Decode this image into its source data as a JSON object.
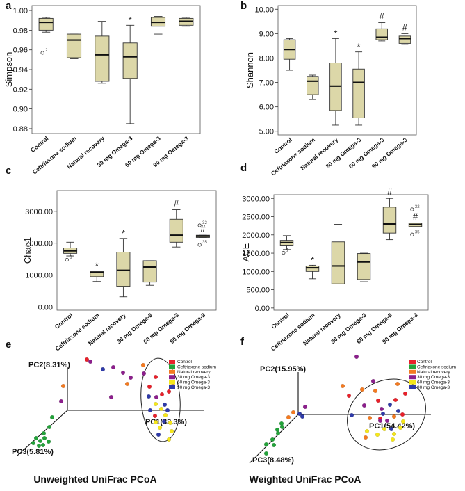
{
  "chart_data": [
    {
      "panel": "a",
      "type": "box",
      "ylabel": "Simpson",
      "ylim": [
        0.875,
        1.005
      ],
      "yticks": [
        0.88,
        0.9,
        0.92,
        0.94,
        0.96,
        0.98,
        1.0
      ],
      "ytick_labels": [
        "0.88",
        "0.90",
        "0.92",
        "0.94",
        "0.96",
        "0.98",
        "1.00"
      ],
      "categories": [
        "Control",
        "Ceftriaxone sodium",
        "Natural recovery",
        "30 mg Omega-3",
        "60 mg Omega-3",
        "90 mg Omega-3"
      ],
      "boxes": [
        {
          "min": 0.978,
          "q1": 0.98,
          "median": 0.988,
          "q3": 0.992,
          "max": 0.993
        },
        {
          "min": 0.951,
          "q1": 0.952,
          "median": 0.97,
          "q3": 0.976,
          "max": 0.977
        },
        {
          "min": 0.926,
          "q1": 0.928,
          "median": 0.955,
          "q3": 0.974,
          "max": 0.989
        },
        {
          "min": 0.885,
          "q1": 0.931,
          "median": 0.953,
          "q3": 0.967,
          "max": 0.985
        },
        {
          "min": 0.976,
          "q1": 0.984,
          "median": 0.988,
          "q3": 0.993,
          "max": 0.994
        },
        {
          "min": 0.984,
          "q1": 0.985,
          "median": 0.989,
          "q3": 0.992,
          "max": 0.993
        }
      ],
      "outliers": [
        {
          "category": "Control",
          "value": 0.957,
          "label": "2"
        }
      ],
      "annotations": [
        {
          "category": "30 mg Omega-3",
          "text": "*"
        }
      ]
    },
    {
      "panel": "b",
      "type": "box",
      "ylabel": "Shannon",
      "ylim": [
        4.85,
        10.15
      ],
      "yticks": [
        5.0,
        6.0,
        7.0,
        8.0,
        9.0,
        10.0
      ],
      "ytick_labels": [
        "5.00",
        "6.00",
        "7.00",
        "8.00",
        "9.00",
        "10.00"
      ],
      "categories": [
        "Control",
        "Ceftriaxone sodium",
        "Natural recovery",
        "30 mg Omega-3",
        "60 mg Omega-3",
        "90 mg Omega-3"
      ],
      "boxes": [
        {
          "min": 7.5,
          "q1": 7.95,
          "median": 8.35,
          "q3": 8.75,
          "max": 8.8
        },
        {
          "min": 6.3,
          "q1": 6.5,
          "median": 7.05,
          "q3": 7.25,
          "max": 7.3
        },
        {
          "min": 5.25,
          "q1": 5.85,
          "median": 6.85,
          "q3": 7.8,
          "max": 8.8
        },
        {
          "min": 5.25,
          "q1": 5.55,
          "median": 7.0,
          "q3": 7.55,
          "max": 8.25
        },
        {
          "min": 8.7,
          "q1": 8.75,
          "median": 8.85,
          "q3": 9.2,
          "max": 9.45
        },
        {
          "min": 8.55,
          "q1": 8.6,
          "median": 8.8,
          "q3": 8.9,
          "max": 9.0
        }
      ],
      "outliers": [],
      "annotations": [
        {
          "category": "Natural recovery",
          "text": "*"
        },
        {
          "category": "30 mg Omega-3",
          "text": "*"
        },
        {
          "category": "60 mg Omega-3",
          "text": "#"
        },
        {
          "category": "90 mg Omega-3",
          "text": "#"
        }
      ]
    },
    {
      "panel": "c",
      "type": "box",
      "ylabel": "Chao1",
      "ylim": [
        -100,
        3650
      ],
      "yticks": [
        0,
        1000,
        2000,
        3000
      ],
      "ytick_labels": [
        "0.00",
        "1000.00",
        "2000.00",
        "3000.00"
      ],
      "categories": [
        "Control",
        "Ceftriaxone sodium",
        "Natural recovery",
        "30 mg Omega-3",
        "60 mg Omega-3",
        "90 mg Omega-3"
      ],
      "boxes": [
        {
          "min": 1600,
          "q1": 1680,
          "median": 1760,
          "q3": 1850,
          "max": 2030
        },
        {
          "min": 800,
          "q1": 950,
          "median": 1080,
          "q3": 1110,
          "max": 1130
        },
        {
          "min": 320,
          "q1": 650,
          "median": 1150,
          "q3": 1720,
          "max": 2150
        },
        {
          "min": 680,
          "q1": 780,
          "median": 1250,
          "q3": 1450,
          "max": 1450
        },
        {
          "min": 1880,
          "q1": 2030,
          "median": 2250,
          "q3": 2750,
          "max": 3050
        },
        {
          "min": 2180,
          "q1": 2180,
          "median": 2220,
          "q3": 2250,
          "max": 2250
        }
      ],
      "outliers": [
        {
          "category": "Control",
          "value": 1480,
          "label": "1"
        },
        {
          "category": "90 mg Omega-3",
          "value": 2560,
          "label": "32"
        },
        {
          "category": "90 mg Omega-3",
          "value": 1950,
          "label": "35"
        }
      ],
      "annotations": [
        {
          "category": "Ceftriaxone sodium",
          "text": "*"
        },
        {
          "category": "Natural recovery",
          "text": "*"
        },
        {
          "category": "60 mg Omega-3",
          "text": "#"
        },
        {
          "category": "90 mg Omega-3",
          "text": "#"
        }
      ]
    },
    {
      "panel": "d",
      "type": "box",
      "ylabel": "ACE",
      "ylim": [
        -60,
        3100
      ],
      "yticks": [
        0,
        500,
        1000,
        1500,
        2000,
        2500,
        3000
      ],
      "ytick_labels": [
        "0.00",
        "500.00",
        "1000.00",
        "1500.00",
        "2000.00",
        "2500.00",
        "3000.00"
      ],
      "categories": [
        "Control",
        "Ceftriaxone sodium",
        "Natural recovery",
        "30 mg Omega-3",
        "60 mg Omega-3",
        "90 mg Omega-3"
      ],
      "boxes": [
        {
          "min": 1600,
          "q1": 1720,
          "median": 1790,
          "q3": 1850,
          "max": 1980
        },
        {
          "min": 800,
          "q1": 1000,
          "median": 1100,
          "q3": 1150,
          "max": 1170
        },
        {
          "min": 330,
          "q1": 660,
          "median": 1150,
          "q3": 1810,
          "max": 2290
        },
        {
          "min": 720,
          "q1": 780,
          "median": 1260,
          "q3": 1490,
          "max": 1500
        },
        {
          "min": 1870,
          "q1": 2050,
          "median": 2300,
          "q3": 2760,
          "max": 3000
        },
        {
          "min": 2230,
          "q1": 2230,
          "median": 2290,
          "q3": 2330,
          "max": 2330
        }
      ],
      "outliers": [
        {
          "category": "Control",
          "value": 1510,
          "label": "1"
        },
        {
          "category": "90 mg Omega-3",
          "value": 2700,
          "label": "32"
        },
        {
          "category": "90 mg Omega-3",
          "value": 2010,
          "label": "35"
        }
      ],
      "annotations": [
        {
          "category": "Ceftriaxone sodium",
          "text": "*"
        },
        {
          "category": "60 mg Omega-3",
          "text": "#"
        },
        {
          "category": "90 mg Omega-3",
          "text": "#"
        }
      ]
    },
    {
      "panel": "e",
      "type": "scatter3d",
      "title": "Unweighted  UniFrac PCoA",
      "axes": [
        "PC1(33.3%)",
        "PC2(8.31%)",
        "PC3(5.81%)"
      ],
      "legend": [
        {
          "name": "Control",
          "color": "#e8202a"
        },
        {
          "name": "Ceftriaxone sodium",
          "color": "#23a23a"
        },
        {
          "name": "Natural recovery",
          "color": "#f47a20"
        },
        {
          "name": "30 mg Omega-3",
          "color": "#8c1f8c"
        },
        {
          "name": "60 mg Omega-3",
          "color": "#f5e61a"
        },
        {
          "name": "90 mg Omega-3",
          "color": "#2f3aa8"
        }
      ]
    },
    {
      "panel": "f",
      "type": "scatter3d",
      "title": "Weighted UniFrac PCoA",
      "axes": [
        "PC1(54.42%)",
        "PC2(15.95%)",
        "PC3(8.48%)"
      ],
      "legend": [
        {
          "name": "Control",
          "color": "#e8202a"
        },
        {
          "name": "Ceftriaxone sodium",
          "color": "#23a23a"
        },
        {
          "name": "Natural recovery",
          "color": "#f47a20"
        },
        {
          "name": "30 mg Omega-3",
          "color": "#8c1f8c"
        },
        {
          "name": "60 mg Omega-3",
          "color": "#f5e61a"
        },
        {
          "name": "90 mg Omega-3",
          "color": "#2f3aa8"
        }
      ]
    }
  ],
  "style": {
    "box_fill": "#dcd7a8",
    "box_stroke": "#333333"
  }
}
